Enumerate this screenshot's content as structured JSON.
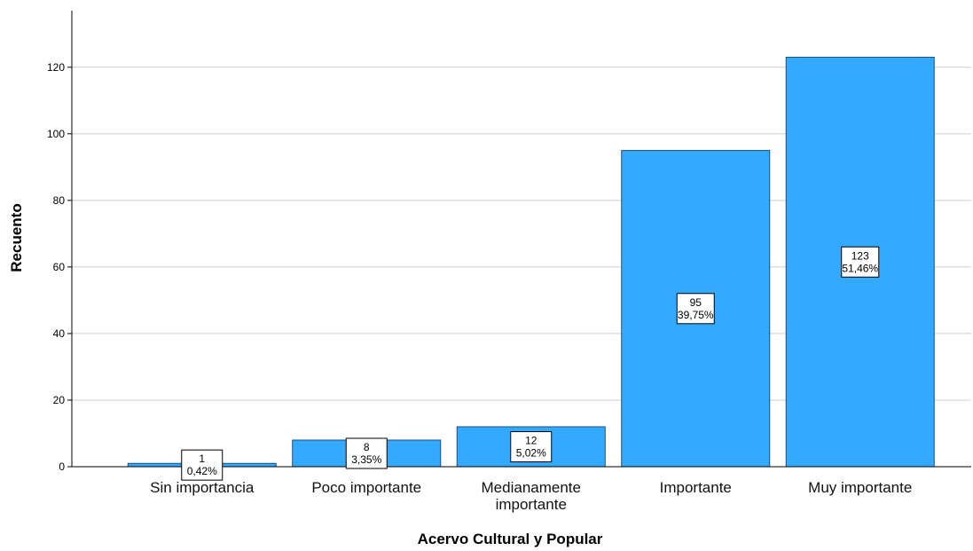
{
  "chart_data": {
    "type": "bar",
    "xlabel": "Acervo Cultural y Popular",
    "ylabel": "Recuento",
    "categories": [
      [
        "Sin importancia"
      ],
      [
        "Poco importante"
      ],
      [
        "Medianamente",
        "importante"
      ],
      [
        "Importante"
      ],
      [
        "Muy importante"
      ]
    ],
    "values": [
      1,
      8,
      12,
      95,
      123
    ],
    "percent_labels": [
      "0,42%",
      "3,35%",
      "5,02%",
      "39,75%",
      "51,46%"
    ],
    "count_labels": [
      "1",
      "8",
      "12",
      "95",
      "123"
    ],
    "y_ticks": [
      0,
      20,
      40,
      60,
      80,
      100,
      120
    ],
    "ylim": [
      0,
      137
    ],
    "grid": true,
    "bar_color": "#33aaff"
  }
}
